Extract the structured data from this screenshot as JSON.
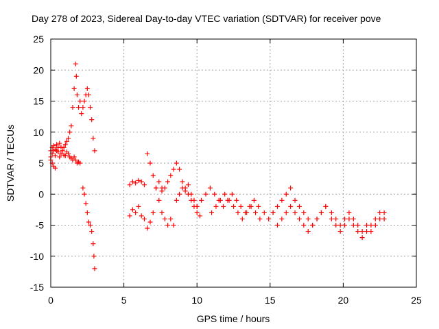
{
  "chart_data": {
    "type": "scatter",
    "title": "Day 278 of 2023, Sidereal Day-to-day VTEC variation (SDTVAR) for receiver pove",
    "xlabel": "GPS time / hours",
    "ylabel": "SDTVAR / TECUs",
    "xlim": [
      0,
      25
    ],
    "ylim": [
      -15,
      25
    ],
    "xticks": [
      "0",
      "5",
      "10",
      "15",
      "20",
      "25"
    ],
    "yticks": [
      "25",
      "20",
      "15",
      "10",
      "5",
      "0",
      "-5",
      "-10",
      "-15"
    ],
    "grid": true,
    "marker": "+",
    "color": "#ff0000",
    "series": [
      {
        "name": "SDTVAR",
        "x": [
          0.0,
          0.1,
          0.2,
          0.3,
          0.4,
          0.5,
          0.6,
          0.7,
          0.8,
          0.9,
          1.0,
          1.1,
          1.2,
          1.3,
          1.4,
          1.5,
          1.6,
          1.7,
          1.75,
          1.8,
          1.9,
          2.0,
          2.1,
          2.2,
          2.3,
          2.4,
          2.5,
          2.6,
          2.7,
          2.8,
          2.9,
          3.0,
          0.0,
          0.1,
          0.2,
          0.3,
          0.4,
          0.5,
          0.6,
          0.7,
          0.8,
          0.9,
          1.0,
          1.1,
          1.2,
          1.3,
          1.4,
          1.5,
          1.6,
          1.7,
          1.8,
          1.9,
          2.0,
          0.0,
          0.1,
          0.2,
          0.3,
          2.2,
          2.3,
          2.4,
          2.5,
          2.6,
          2.7,
          2.8,
          2.9,
          2.95,
          3.0,
          5.4,
          5.6,
          5.8,
          6.0,
          6.2,
          6.4,
          5.4,
          5.6,
          5.8,
          6.0,
          6.2,
          6.4,
          6.6,
          6.8,
          7.0,
          7.2,
          7.4,
          7.6,
          6.6,
          6.8,
          7.0,
          7.2,
          7.4,
          7.6,
          7.8,
          8.0,
          8.2,
          8.4,
          7.6,
          7.8,
          8.0,
          8.2,
          8.4,
          8.6,
          8.8,
          9.0,
          9.2,
          9.4,
          9.6,
          9.8,
          10.0,
          10.2,
          8.6,
          8.8,
          9.0,
          9.2,
          9.4,
          9.6,
          9.8,
          10.0,
          10.0,
          10.3,
          10.6,
          10.9,
          11.2,
          11.5,
          11.8,
          12.1,
          12.4,
          12.7,
          13.0,
          13.3,
          13.6,
          13.9,
          14.2,
          11.0,
          11.3,
          11.6,
          11.9,
          12.2,
          12.5,
          12.8,
          13.1,
          13.4,
          13.7,
          14.0,
          14.3,
          14.6,
          14.9,
          15.2,
          15.2,
          15.5,
          15.8,
          16.1,
          16.4,
          16.7,
          17.0,
          17.3,
          17.6,
          17.9,
          18.2,
          18.5,
          18.8,
          15.5,
          15.8,
          16.1,
          16.4,
          16.7,
          17.0,
          17.3,
          17.6,
          17.9,
          18.2,
          18.5,
          18.8,
          19.2,
          19.5,
          19.8,
          20.1,
          20.4,
          20.7,
          21.0,
          21.3,
          21.6,
          21.9,
          22.2,
          22.5,
          22.8,
          19.2,
          19.5,
          19.8,
          20.1,
          20.4,
          20.7,
          21.0,
          21.3,
          21.6,
          21.9,
          22.2,
          22.5,
          22.8
        ],
        "y": [
          7,
          7.5,
          7.8,
          7.2,
          8,
          7.5,
          8.2,
          7.6,
          7,
          7.5,
          8,
          8.5,
          9,
          10,
          11,
          14,
          17,
          21,
          19,
          16,
          14,
          15,
          13,
          14,
          15,
          16,
          17,
          16,
          14,
          12,
          9,
          7,
          6,
          6.5,
          7,
          6.2,
          7,
          6.8,
          6,
          6.5,
          7,
          6.3,
          6.2,
          6.8,
          6.5,
          6,
          5.8,
          5.5,
          6,
          5.5,
          5,
          5.2,
          5,
          5.5,
          5,
          4.5,
          4.2,
          1,
          0,
          -1.5,
          -3,
          -4.5,
          -5,
          -6,
          -8,
          -10,
          -12,
          1.5,
          2,
          1.8,
          2.2,
          2,
          1.5,
          -3.5,
          -2.5,
          -3,
          -2,
          -3.5,
          -4,
          -5.5,
          -4.5,
          -3,
          1,
          2,
          1,
          6.5,
          5,
          3,
          1,
          -1,
          -3,
          -4,
          -5,
          -4,
          -5,
          0.5,
          1,
          2,
          3,
          4,
          5,
          4,
          2,
          1,
          0,
          -1,
          -2,
          -3,
          -3.5,
          -1,
          0,
          1,
          0.5,
          1.5,
          0,
          -1,
          -2,
          -2,
          -1,
          0,
          1,
          0,
          -1,
          -2,
          -1,
          0,
          -1,
          -2,
          -3,
          -2,
          -1,
          -2,
          -3,
          -2,
          -1,
          0,
          -1,
          -2,
          -3,
          -4,
          -3,
          -2,
          -3,
          -4,
          -3,
          -4,
          -3,
          -3,
          -2,
          -1,
          0,
          1,
          -1,
          -2,
          -3,
          -4,
          -5,
          -4,
          -3,
          -2,
          -5,
          -4,
          -3,
          -2,
          -3,
          -4,
          -5,
          -6,
          -5,
          -4,
          -3,
          -2,
          -3,
          -4,
          -5,
          -4,
          -3,
          -4,
          -5,
          -6,
          -5,
          -6,
          -5,
          -4,
          -3,
          -4,
          -5,
          -6,
          -5,
          -4,
          -5,
          -6,
          -7,
          -6,
          -5,
          -4,
          -3,
          -4
        ]
      }
    ]
  }
}
